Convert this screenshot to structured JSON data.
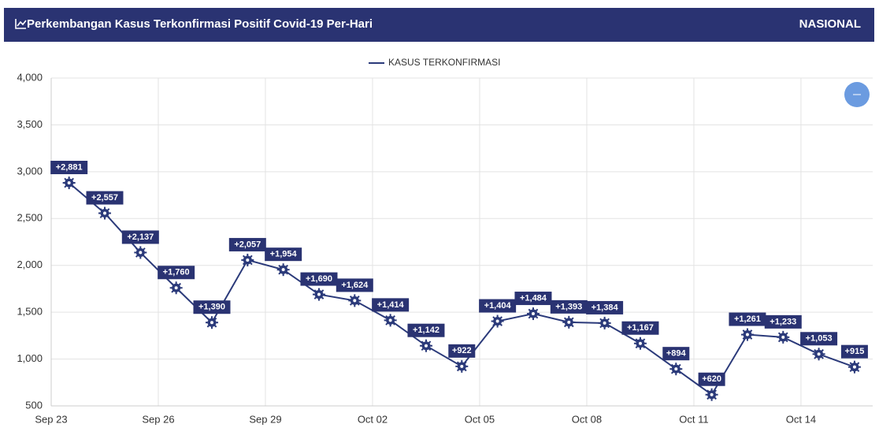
{
  "header": {
    "title": "Perkembangan Kasus Terkonfirmasi Positif Covid-19 Per-Hari",
    "scope": "NASIONAL"
  },
  "chart_data": {
    "type": "line",
    "categories": [
      "Sep 23",
      "Sep 24",
      "Sep 25",
      "Sep 26",
      "Sep 27",
      "Sep 28",
      "Sep 29",
      "Sep 30",
      "Oct 01",
      "Oct 02",
      "Oct 03",
      "Oct 04",
      "Oct 05",
      "Oct 06",
      "Oct 07",
      "Oct 08",
      "Oct 09",
      "Oct 10",
      "Oct 11",
      "Oct 12",
      "Oct 13",
      "Oct 14",
      "Oct 15"
    ],
    "xticks": [
      "Sep 23",
      "Sep 26",
      "Sep 29",
      "Oct 02",
      "Oct 05",
      "Oct 08",
      "Oct 11",
      "Oct 14"
    ],
    "series": [
      {
        "name": "KASUS TERKONFIRMASI",
        "color": "#2b3a7a",
        "values": [
          2881,
          2557,
          2137,
          1760,
          1390,
          2057,
          1954,
          1690,
          1624,
          1414,
          1142,
          922,
          1404,
          1484,
          1393,
          1384,
          1167,
          894,
          620,
          1261,
          1233,
          1053,
          915
        ],
        "value_labels": [
          "+2,881",
          "+2,557",
          "+2,137",
          "+1,760",
          "+1,390",
          "+2,057",
          "+1,954",
          "+1,690",
          "+1,624",
          "+1,414",
          "+1,142",
          "+922",
          "+1,404",
          "+1,484",
          "+1,393",
          "+1,384",
          "+1,167",
          "+894",
          "+620",
          "+1,261",
          "+1,233",
          "+1,053",
          "+915"
        ]
      }
    ],
    "ylim": [
      500,
      4000
    ],
    "yticks": [
      {
        "value": 500,
        "label": "500"
      },
      {
        "value": 1000,
        "label": "1,000"
      },
      {
        "value": 1500,
        "label": "1,500"
      },
      {
        "value": 2000,
        "label": "2,000"
      },
      {
        "value": 2500,
        "label": "2,500"
      },
      {
        "value": 3000,
        "label": "3,000"
      },
      {
        "value": 3500,
        "label": "3,500"
      },
      {
        "value": 4000,
        "label": "4,000"
      }
    ],
    "grid": true
  }
}
